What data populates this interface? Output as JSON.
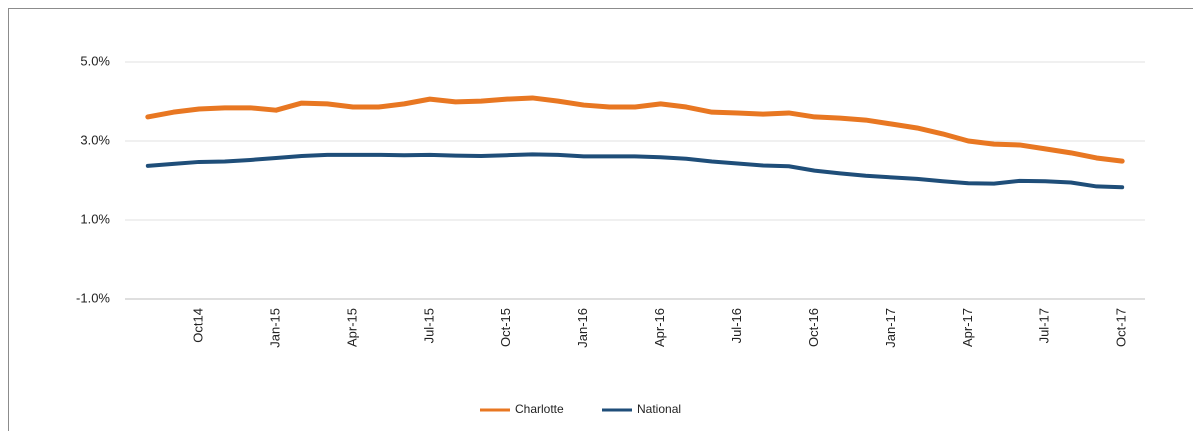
{
  "chart_data": {
    "type": "line",
    "legend": "bottom",
    "grid": true,
    "categories": [
      null,
      null,
      "Oct14",
      null,
      null,
      "Jan-15",
      null,
      null,
      "Apr-15",
      null,
      null,
      "Jul-15",
      null,
      null,
      "Oct-15",
      null,
      null,
      "Jan-16",
      null,
      null,
      "Apr-16",
      null,
      null,
      "Jul-16",
      null,
      null,
      "Oct-16",
      null,
      null,
      "Jan-17",
      null,
      null,
      "Apr-17",
      null,
      null,
      "Jul-17",
      null,
      null,
      "Oct-17"
    ],
    "series": [
      {
        "name": "Charlotte",
        "color": "#e87722",
        "values": [
          3.61,
          3.73,
          3.81,
          3.84,
          3.84,
          3.78,
          3.96,
          3.94,
          3.86,
          3.86,
          3.94,
          4.06,
          3.99,
          4.01,
          4.06,
          4.09,
          4.01,
          3.91,
          3.86,
          3.86,
          3.94,
          3.86,
          3.73,
          3.71,
          3.68,
          3.71,
          3.61,
          3.58,
          3.53,
          3.43,
          3.33,
          3.18,
          3.0,
          2.92,
          2.9,
          2.8,
          2.7,
          2.57,
          2.49
        ]
      },
      {
        "name": "National",
        "color": "#1f4e79",
        "values": [
          2.37,
          2.42,
          2.47,
          2.48,
          2.52,
          2.57,
          2.62,
          2.65,
          2.65,
          2.65,
          2.64,
          2.65,
          2.63,
          2.62,
          2.64,
          2.66,
          2.65,
          2.61,
          2.61,
          2.61,
          2.59,
          2.55,
          2.48,
          2.43,
          2.38,
          2.36,
          2.25,
          2.18,
          2.12,
          2.08,
          2.04,
          1.98,
          1.93,
          1.92,
          1.99,
          1.98,
          1.95,
          1.85,
          1.83
        ]
      }
    ],
    "ylim": [
      -1,
      6
    ],
    "yticks": [
      {
        "value": -1,
        "label": "-1.0%"
      },
      {
        "value": 1,
        "label": "1.0%"
      },
      {
        "value": 3,
        "label": "3.0%"
      },
      {
        "value": 5,
        "label": "5.0%"
      }
    ]
  }
}
